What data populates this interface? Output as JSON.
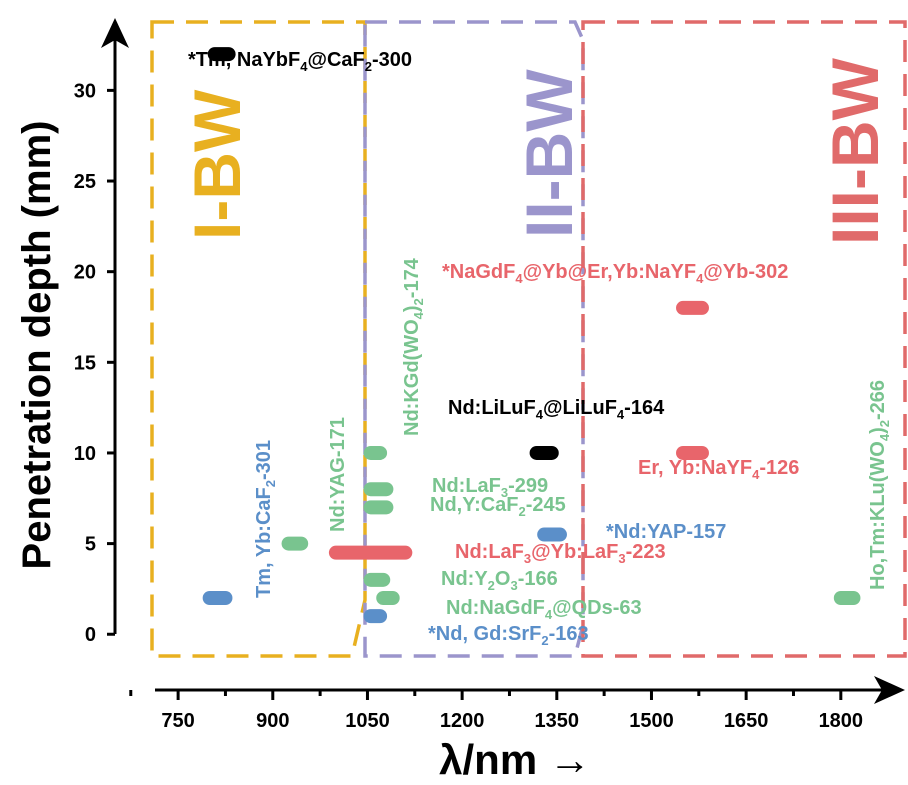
{
  "colors": {
    "blue": "#5b8fc9",
    "green": "#79c48f",
    "red": "#e8656b",
    "black": "#000000",
    "band_I": "#e8b020",
    "band_II": "#9b95cc",
    "band_III": "#e06a6a"
  },
  "chart_data": {
    "type": "range-bar",
    "xlabel": "λ/nm →",
    "ylabel": "Penetration depth (mm)",
    "xlim": [
      650,
      1870
    ],
    "ylim": [
      -1.2,
      33
    ],
    "xticks": [
      750,
      900,
      1050,
      1200,
      1350,
      1500,
      1650,
      1800
    ],
    "xtick_labels": [
      "750",
      "900",
      "1050",
      "1200",
      "1350",
      "1500",
      "1650",
      "1800"
    ],
    "yticks": [
      0,
      5,
      10,
      15,
      20,
      25,
      30
    ],
    "ytick_labels": [
      "0",
      "5",
      "10",
      "15",
      "20",
      "25",
      "30"
    ],
    "bands": [
      {
        "label": "I-BW",
        "x_start": 680,
        "x_end": 990,
        "color": "#e8b020"
      },
      {
        "label": "II-BW",
        "x_start": 990,
        "x_end": 1340,
        "color": "#9b95cc"
      },
      {
        "label": "III-BW",
        "x_start": 1340,
        "x_end": 1860,
        "color": "#e06a6a"
      }
    ],
    "points": [
      {
        "label": "*Tm, NaYbF4@CaF2-300",
        "x_start": 808,
        "x_end": 830,
        "y": 32,
        "color": "black"
      },
      {
        "label": "Tm, Yb:CaF2-301",
        "x_start": 800,
        "x_end": 825,
        "y": 2,
        "color": "blue"
      },
      {
        "label": "Nd:YAG-171",
        "x_start": 925,
        "x_end": 945,
        "y": 5,
        "color": "green"
      },
      {
        "label": "Nd:KGd(WO4)2-174",
        "x_start": 1055,
        "x_end": 1070,
        "y": 10,
        "color": "green"
      },
      {
        "label": "Nd:LaF3-299",
        "x_start": 1055,
        "x_end": 1080,
        "y": 8,
        "color": "green"
      },
      {
        "label": "Nd,Y:CaF2-245",
        "x_start": 1055,
        "x_end": 1080,
        "y": 7,
        "color": "green"
      },
      {
        "label": "Nd:LaF3@Yb:LaF3-223",
        "x_start": 1000,
        "x_end": 1110,
        "y": 4.5,
        "color": "red"
      },
      {
        "label": "Nd:Y2O3-166",
        "x_start": 1055,
        "x_end": 1075,
        "y": 3,
        "color": "green"
      },
      {
        "label": "Nd:NaGdF4@QDs-63",
        "x_start": 1075,
        "x_end": 1090,
        "y": 2,
        "color": "green"
      },
      {
        "label": "*Nd, Gd:SrF2-163",
        "x_start": 1055,
        "x_end": 1070,
        "y": 1,
        "color": "blue"
      },
      {
        "label": "Nd:LiLuF4@LiLuF4-164",
        "x_start": 1318,
        "x_end": 1342,
        "y": 10,
        "color": "black"
      },
      {
        "label": "*Nd:YAP-157",
        "x_start": 1330,
        "x_end": 1355,
        "y": 5.5,
        "color": "blue"
      },
      {
        "label": "*NaGdF4@Yb@Er,Yb:NaYF4@Yb-302",
        "x_start": 1550,
        "x_end": 1580,
        "y": 18,
        "color": "red"
      },
      {
        "label": "Er, Yb:NaYF4-126",
        "x_start": 1550,
        "x_end": 1580,
        "y": 10,
        "color": "red"
      },
      {
        "label": "Ho,Tm:KLu(WO4)2-266",
        "x_start": 1800,
        "x_end": 1820,
        "y": 2,
        "color": "green"
      }
    ]
  }
}
